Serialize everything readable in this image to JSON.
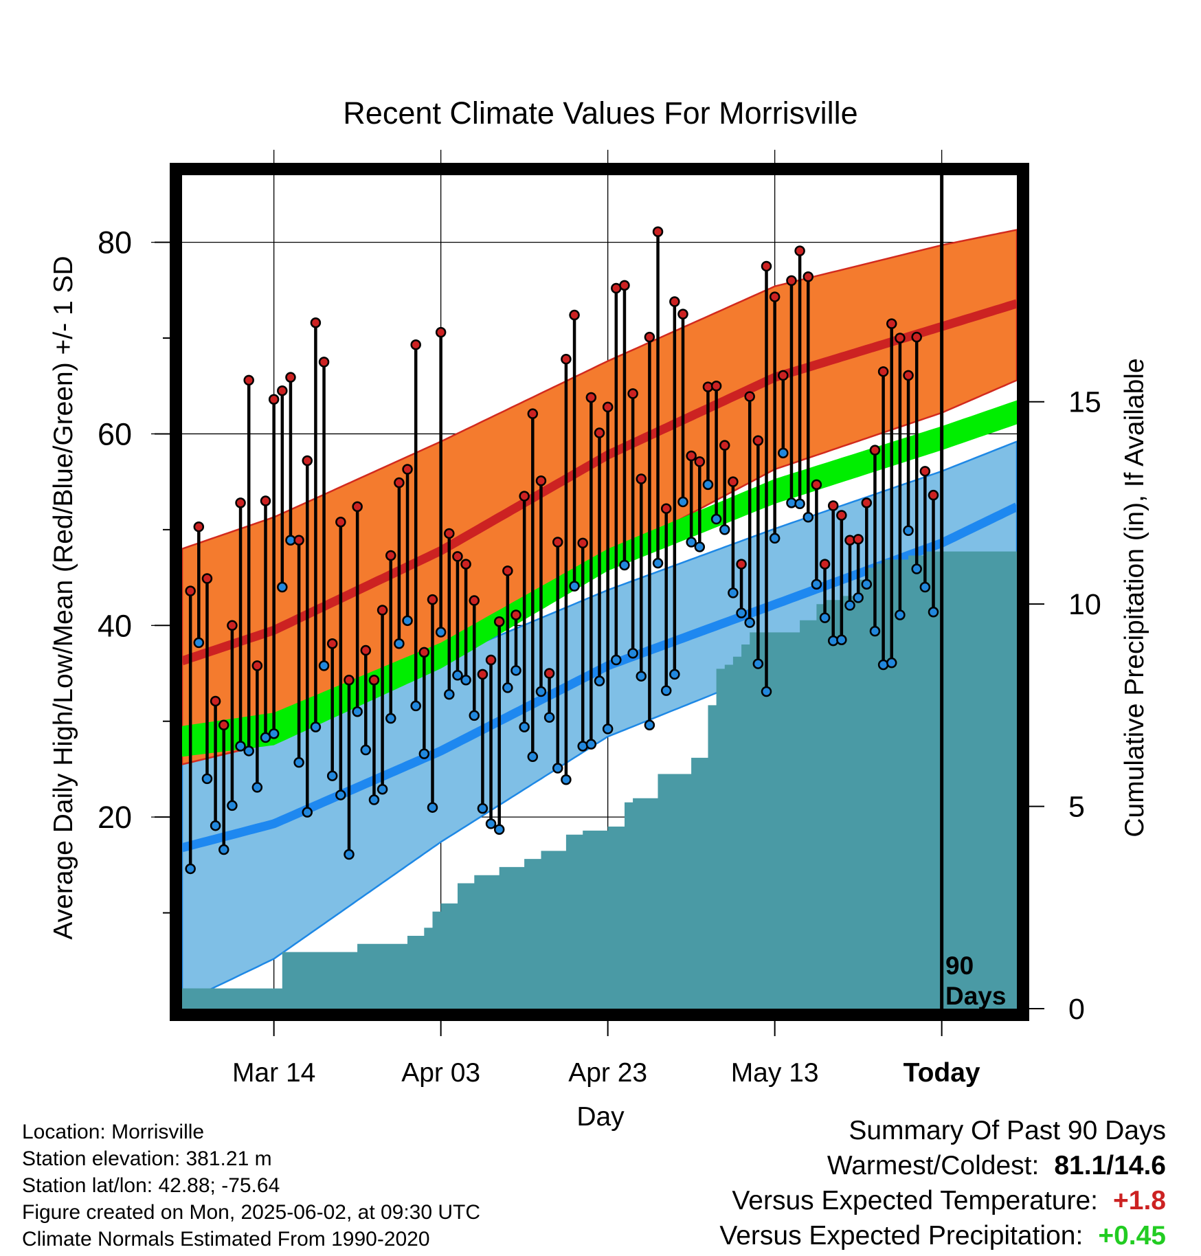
{
  "chart_data": {
    "type": "line",
    "title": "Recent Climate Values For Morrisville",
    "xlabel": "Day",
    "ylabel": "Average Daily High/Low/Mean (Red/Blue/Green) +/- 1 SD",
    "y2label": "Cumulative Precipitation (in), If Available",
    "x_tick_labels": [
      "Mar 14",
      "Apr 03",
      "Apr 23",
      "May 13",
      "Today"
    ],
    "x_tick_days": [
      -80,
      -60,
      -40,
      -20,
      0
    ],
    "x_range_days": [
      -91,
      9
    ],
    "ylim": [
      0,
      87
    ],
    "y_ticks": [
      20,
      40,
      60,
      80
    ],
    "y_minor_ticks": [
      10,
      30,
      50,
      70
    ],
    "y2lim": [
      0,
      20.6
    ],
    "y2_ticks": [
      0,
      5,
      10,
      15
    ],
    "grid": true,
    "today_marker_label": [
      "90",
      "Days"
    ],
    "normals": {
      "day": [
        -91,
        -80,
        -60,
        -40,
        -20,
        0,
        9
      ],
      "high_upper": [
        48,
        51.3,
        59.2,
        67.6,
        75.4,
        79.7,
        81.3
      ],
      "high_mean": [
        36.3,
        39.5,
        47.8,
        57.8,
        65.9,
        71.2,
        73.6
      ],
      "high_lower": [
        25.5,
        27.8,
        35.9,
        47.1,
        56.3,
        62.2,
        65.6
      ],
      "mean_upper": [
        29.5,
        30.9,
        38.2,
        48,
        55.3,
        60.8,
        63.5
      ],
      "mean_lower": [
        26.3,
        27.5,
        35.5,
        45.7,
        52.7,
        58.3,
        61
      ],
      "low_upper": [
        29.2,
        31.9,
        36.4,
        43.7,
        50.1,
        56.1,
        59.2
      ],
      "low_mean": [
        16.8,
        19.3,
        26.9,
        35.8,
        42.2,
        48.6,
        52.4
      ],
      "low_lower": [
        0.6,
        5.2,
        17.4,
        28.4,
        35.4,
        41.6,
        45.6
      ]
    },
    "series": [
      {
        "name": "High",
        "color": "#cc2222",
        "day": [
          -90,
          -89,
          -88,
          -87,
          -86,
          -85,
          -84,
          -83,
          -82,
          -81,
          -80,
          -79,
          -78,
          -77,
          -76,
          -75,
          -74,
          -73,
          -72,
          -71,
          -70,
          -69,
          -68,
          -67,
          -66,
          -65,
          -64,
          -63,
          -62,
          -61,
          -60,
          -59,
          -58,
          -57,
          -56,
          -55,
          -54,
          -53,
          -52,
          -51,
          -50,
          -49,
          -48,
          -47,
          -46,
          -45,
          -44,
          -43,
          -42,
          -41,
          -40,
          -39,
          -38,
          -37,
          -36,
          -35,
          -34,
          -33,
          -32,
          -31,
          -30,
          -29,
          -28,
          -27,
          -26,
          -25,
          -24,
          -23,
          -22,
          -21,
          -20,
          -19,
          -18,
          -17,
          -16,
          -15,
          -14,
          -13,
          -12,
          -11,
          -10,
          -9,
          -8,
          -7,
          -6,
          -5,
          -4,
          -3,
          -2,
          -1
        ],
        "values": [
          43.6,
          50.3,
          44.9,
          32.1,
          29.6,
          40,
          52.8,
          65.6,
          35.8,
          53,
          63.6,
          64.5,
          65.9,
          48.9,
          57.2,
          71.6,
          67.5,
          38.1,
          50.8,
          34.3,
          52.4,
          37.4,
          34.3,
          41.6,
          47.3,
          54.9,
          56.3,
          69.3,
          37.2,
          42.7,
          70.6,
          49.6,
          47.2,
          46.4,
          42.6,
          34.9,
          36.4,
          40.4,
          45.7,
          41.1,
          53.5,
          62.1,
          55.1,
          35,
          48.7,
          67.8,
          72.4,
          48.6,
          63.8,
          60.1,
          62.8,
          75.2,
          75.5,
          64.2,
          55.3,
          70.1,
          81.1,
          52.2,
          73.8,
          72.5,
          57.7,
          57.1,
          64.9,
          65,
          58.8,
          55,
          46.4,
          63.9,
          59.3,
          77.5,
          74.3,
          66.1,
          76,
          79.1,
          76.4,
          54.7,
          46.4,
          52.5,
          51.5,
          48.9,
          49,
          52.8,
          58.3,
          66.5,
          71.5,
          70,
          66.1,
          70.1,
          56.1,
          53.6
        ]
      },
      {
        "name": "Low",
        "color": "#2288dd",
        "day": [
          -90,
          -89,
          -88,
          -87,
          -86,
          -85,
          -84,
          -83,
          -82,
          -81,
          -80,
          -79,
          -78,
          -77,
          -76,
          -75,
          -74,
          -73,
          -72,
          -71,
          -70,
          -69,
          -68,
          -67,
          -66,
          -65,
          -64,
          -63,
          -62,
          -61,
          -60,
          -59,
          -58,
          -57,
          -56,
          -55,
          -54,
          -53,
          -52,
          -51,
          -50,
          -49,
          -48,
          -47,
          -46,
          -45,
          -44,
          -43,
          -42,
          -41,
          -40,
          -39,
          -38,
          -37,
          -36,
          -35,
          -34,
          -33,
          -32,
          -31,
          -30,
          -29,
          -28,
          -27,
          -26,
          -25,
          -24,
          -23,
          -22,
          -21,
          -20,
          -19,
          -18,
          -17,
          -16,
          -15,
          -14,
          -13,
          -12,
          -11,
          -10,
          -9,
          -8,
          -7,
          -6,
          -5,
          -4,
          -3,
          -2,
          -1
        ],
        "values": [
          14.6,
          38.2,
          24,
          19.1,
          16.6,
          21.2,
          27.4,
          26.9,
          23.1,
          28.3,
          28.7,
          44,
          48.9,
          25.7,
          20.5,
          29.4,
          35.8,
          24.3,
          22.3,
          16.1,
          31,
          27,
          21.8,
          22.9,
          30.3,
          38.1,
          40.5,
          31.6,
          26.6,
          21,
          39.3,
          32.8,
          34.8,
          34.3,
          30.6,
          20.9,
          19.3,
          18.7,
          33.5,
          35.3,
          29.4,
          26.3,
          33.1,
          30.4,
          25.1,
          23.9,
          44.1,
          27.4,
          27.6,
          34.2,
          29.2,
          36.4,
          46.3,
          37.1,
          34.7,
          29.6,
          46.5,
          33.2,
          34.9,
          52.9,
          48.7,
          48.2,
          54.7,
          51.1,
          50,
          43.4,
          41.3,
          40.3,
          36,
          33.1,
          49.1,
          58,
          52.8,
          52.7,
          51.3,
          44.3,
          40.8,
          38.4,
          38.5,
          42.1,
          42.9,
          44.3,
          39.4,
          35.9,
          36.1,
          41.1,
          49.9,
          45.9,
          44,
          41.4
        ]
      }
    ],
    "precipitation": {
      "name": "Cumulative Precipitation",
      "color": "#4a9aa5",
      "day": [
        -91,
        -80,
        -79,
        -70,
        -64,
        -62,
        -61,
        -60,
        -58,
        -56,
        -53,
        -50,
        -48,
        -45,
        -43,
        -40,
        -38,
        -37,
        -34,
        -33,
        -30,
        -28,
        -27,
        -26,
        -25,
        -24,
        -23,
        -22,
        -20,
        -19,
        -17,
        -15,
        -14,
        -12,
        -10,
        -9,
        -8,
        -7,
        -6,
        -5,
        -4,
        -2,
        0,
        9
      ],
      "values": [
        0.5,
        0.5,
        1.4,
        1.6,
        1.8,
        2,
        2.4,
        2.6,
        3.1,
        3.3,
        3.5,
        3.7,
        3.9,
        4.3,
        4.4,
        4.5,
        5.1,
        5.2,
        5.8,
        5.8,
        6.2,
        7.5,
        8.4,
        8.5,
        8.7,
        9,
        9.3,
        9.3,
        9.3,
        9.3,
        9.6,
        10,
        10.1,
        10.2,
        10.6,
        10.9,
        11,
        11.1,
        11.1,
        11.1,
        11.2,
        11.3,
        11.3,
        11.3
      ]
    }
  },
  "footer": {
    "left_lines": [
      "Location: Morrisville",
      "Station elevation: 381.21 m",
      "Station lat/lon: 42.88; -75.64",
      "Figure created on Mon, 2025-06-02, at 09:30 UTC",
      "Climate Normals Estimated From 1990-2020"
    ],
    "summary_title": "Summary Of Past 90 Days",
    "warmest_coldest_label": "Warmest/Coldest:",
    "warmest_coldest_value": "81.1/14.6",
    "temp_label": "Versus Expected Temperature:",
    "temp_value": "+1.8",
    "temp_color": "#cc2222",
    "precip_label": "Versus Expected Precipitation:",
    "precip_value": "+0.45",
    "precip_color": "#22cc22"
  },
  "colors": {
    "high_band": "#f47b2e",
    "high_band_edge": "#d22a1e",
    "high_mean": "#cc2222",
    "low_band": "#7fbfe6",
    "low_band_edge": "#1e88e5",
    "low_mean": "#1e88f0",
    "mean_band": "#00ee00",
    "precip_fill": "#4a9aa5",
    "frame": "#000000"
  }
}
